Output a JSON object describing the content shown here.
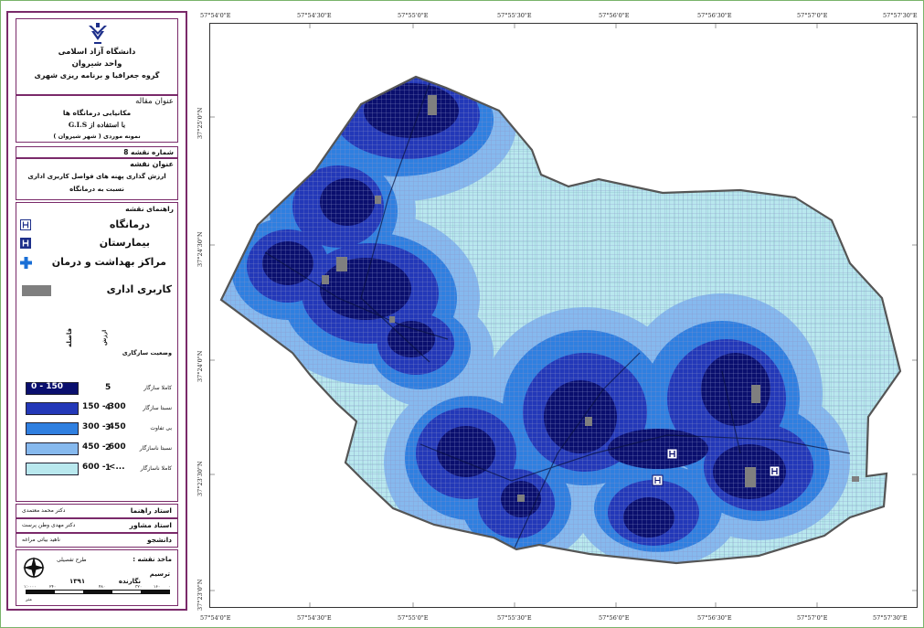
{
  "university": {
    "line1": "دانشگاه آزاد اسلامی",
    "line2": "واحد شیروان",
    "line3": "گروه جغرافیا و برنامه ریزی شهری"
  },
  "article": {
    "heading": "عنوان مقاله",
    "line1": "مکانیابی درمانگاه ها",
    "line2": "با استفاده از G.I.S",
    "line3": "نمونه موردی ( شهر شیروان )"
  },
  "map_number": "شماره نقشه 8",
  "map_title": {
    "heading": "عنوان نقشه",
    "line1": "ارزش گذاری پهنه های فواصل کاربری اداری",
    "line2": "نسبت به درمانگاه"
  },
  "legend": {
    "heading": "راهنمای نقشه",
    "items": [
      {
        "label": "درمانگاه",
        "icon": "clinic-outline-h-icon"
      },
      {
        "label": "بیمارستان",
        "icon": "hospital-h-icon"
      },
      {
        "label": "مراکز بهداشت و درمان",
        "icon": "health-center-cross-icon"
      },
      {
        "label": "کاربری اداری",
        "icon": "gray-swatch"
      }
    ]
  },
  "classification": {
    "col_distance": "فاصله",
    "col_value": "ارزش",
    "col_status": "وضعیت سازگاری",
    "rows": [
      {
        "range": "0 - 150",
        "value": "5",
        "status": "کاملا سازگار",
        "color": "#0a0f6e"
      },
      {
        "range": "150 - 300",
        "value": "4",
        "status": "نسبتا سازگار",
        "color": "#2338b8"
      },
      {
        "range": "300 - 450",
        "value": "3",
        "status": "بی تفاوت",
        "color": "#2f7fe0"
      },
      {
        "range": "450 - 600",
        "value": "2",
        "status": "نسبتا ناسازگار",
        "color": "#86b9ee"
      },
      {
        "range": "600 - <...",
        "value": "1",
        "status": "کاملا ناسازگار",
        "color": "#b9e8ee"
      }
    ]
  },
  "credits": {
    "advisor_name": "دکتر محمد معتمدی",
    "advisor_label": "استاد راهنما",
    "consultant_name": "دکتر مهدی وطن پرست",
    "consultant_label": "استاد مشاور",
    "student_name": "ناهید بیاتی مراغه",
    "student_label": "دانشجو"
  },
  "source": {
    "label": "ماخذ نقشه :",
    "value": "طرح تفصیلی",
    "drafting": "ترسیم",
    "author": "نگارنده",
    "year": "۱۳۹۱",
    "scale_ticks": [
      "۱:۰۰۰۰",
      "۲۴۰",
      "۴۸۰",
      "۳۲۰",
      "۱۶۰",
      "۰"
    ],
    "unit": "متر"
  },
  "coords": {
    "top": [
      "57°54'0\"E",
      "57°54'30\"E",
      "57°55'0\"E",
      "57°55'30\"E",
      "57°56'0\"E",
      "57°56'30\"E",
      "57°57'0\"E",
      "57°57'30\"E"
    ],
    "bottom": [
      "57°54'0\"E",
      "57°54'30\"E",
      "57°55'0\"E",
      "57°55'30\"E",
      "57°56'0\"E",
      "57°56'30\"E",
      "57°57'0\"E",
      "57°57'30\"E"
    ],
    "left": [
      "37°25'0\"N",
      "37°24'30\"N",
      "37°24'0\"N",
      "37°23'30\"N",
      "37°23'0\"N"
    ]
  }
}
